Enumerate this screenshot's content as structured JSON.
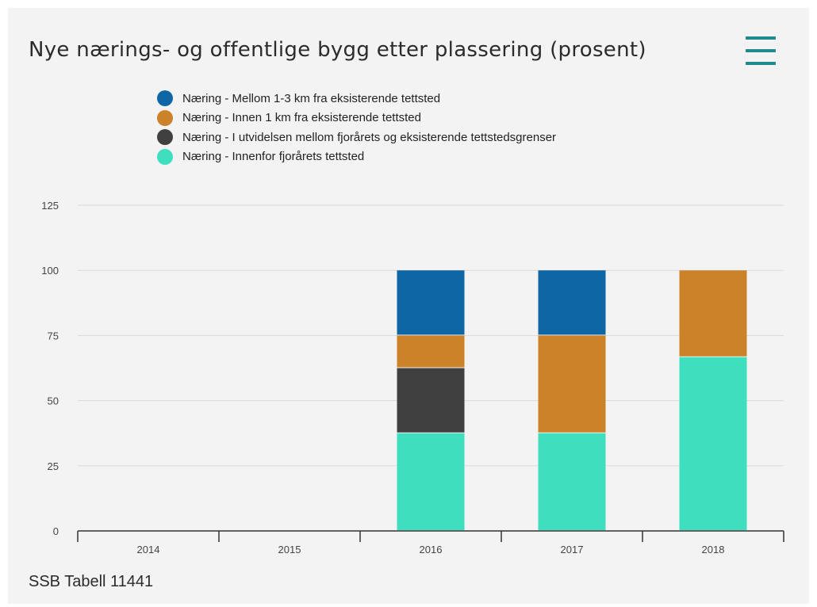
{
  "title": "Nye nærings- og offentlige bygg etter plassering (prosent)",
  "menu_icon": "hamburger-menu-icon",
  "source": "SSB Tabell 11441",
  "colors": {
    "accent": "#1f8a8a",
    "grid": "#d9d9d9",
    "axis": "#333333"
  },
  "chart_data": {
    "type": "bar",
    "stacked": true,
    "title": "Nye nærings- og offentlige bygg etter plassering (prosent)",
    "xlabel": "",
    "ylabel": "",
    "categories": [
      "2014",
      "2015",
      "2016",
      "2017",
      "2018"
    ],
    "yticks": [
      "0",
      "25",
      "50",
      "75",
      "100",
      "125"
    ],
    "ylim": [
      0,
      125
    ],
    "grid": true,
    "legend_position": "top",
    "series": [
      {
        "name": "Næring - Innenfor fjorårets tettsted",
        "color": "#3ddfbf",
        "values": [
          0,
          0,
          37.5,
          37.5,
          66.7
        ]
      },
      {
        "name": "Næring - I utvidelsen mellom fjorårets og eksisterende tettstedsgrenser",
        "color": "#404040",
        "values": [
          0,
          0,
          25,
          0,
          0
        ]
      },
      {
        "name": "Næring - Innen 1 km fra eksisterende tettsted",
        "color": "#cc8229",
        "values": [
          0,
          0,
          12.5,
          37.5,
          33.3
        ]
      },
      {
        "name": "Næring - Mellom 1-3 km fra eksisterende tettsted",
        "color": "#0e67a4",
        "values": [
          0,
          0,
          25,
          25,
          0
        ]
      }
    ],
    "legend_order": [
      3,
      2,
      1,
      0
    ]
  }
}
